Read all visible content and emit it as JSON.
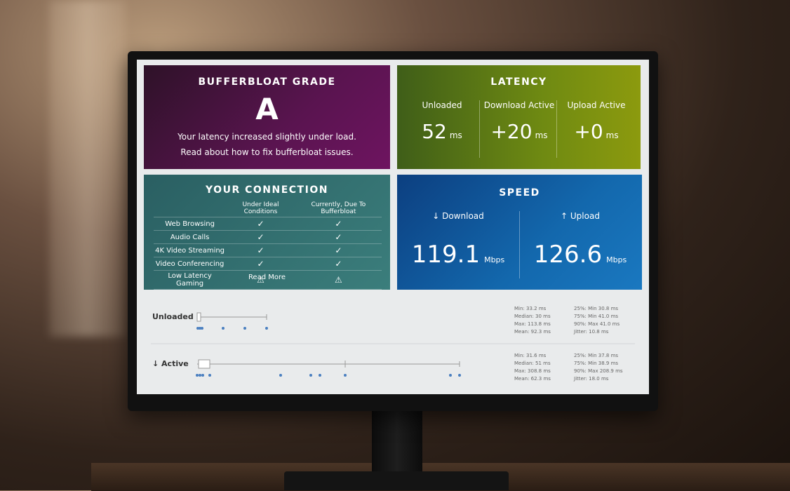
{
  "grade": {
    "title": "BUFFERBLOAT GRADE",
    "grade": "A",
    "summary": "Your latency increased slightly under load.",
    "read_prefix": "Read about",
    "link": "how to fix bufferbloat issues."
  },
  "latency": {
    "title": "LATENCY",
    "items": [
      {
        "label": "Unloaded",
        "value": "52",
        "unit": "ms"
      },
      {
        "label": "Download Active",
        "value": "+20",
        "unit": "ms"
      },
      {
        "label": "Upload Active",
        "value": "+0",
        "unit": "ms"
      }
    ]
  },
  "connection": {
    "title": "YOUR CONNECTION",
    "headers": [
      "Under Ideal Conditions",
      "Currently, Due To Bufferbloat"
    ],
    "rows": [
      [
        "Web Browsing",
        "✓",
        "✓"
      ],
      [
        "Audio Calls",
        "✓",
        "✓"
      ],
      [
        "4K Video Streaming",
        "✓",
        "✓"
      ],
      [
        "Video Conferencing",
        "✓",
        "✓"
      ],
      [
        "Low Latency Gaming",
        "⚠",
        "⚠"
      ]
    ],
    "link": "Read More"
  },
  "speed": {
    "title": "SPEED",
    "items": [
      {
        "label": "↓ Download",
        "value": "119.1",
        "unit": "Mbps"
      },
      {
        "label": "↑ Upload",
        "value": "126.6",
        "unit": "Mbps"
      }
    ]
  },
  "details": [
    {
      "label": "Unloaded",
      "stats": [
        "Min: 33.2 ms",
        "Median: 30 ms",
        "Max: 113.8 ms",
        "Mean: 92.3 ms"
      ],
      "stats2": [
        "25%: Min 30.8 ms",
        "75%: Min 41.0 ms",
        "90%: Max 41.0 ms",
        "Jitter: 10.8 ms"
      ]
    },
    {
      "label": "↓ Active",
      "stats": [
        "Min: 31.6 ms",
        "Median: 51 ms",
        "Max: 308.8 ms",
        "Mean: 62.3 ms"
      ],
      "stats2": [
        "25%: Min 37.8 ms",
        "75%: Min 38.9 ms",
        "90%: Max 208.9 ms",
        "Jitter: 18.0 ms"
      ]
    }
  ]
}
